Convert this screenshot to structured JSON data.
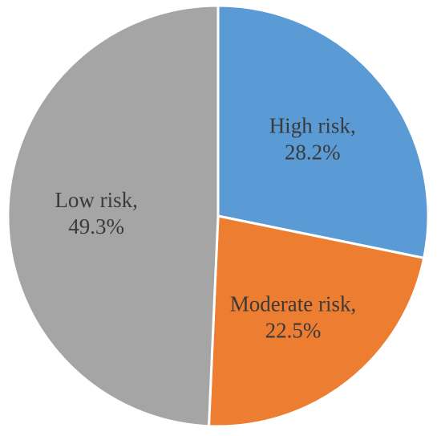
{
  "chart_data": {
    "type": "pie",
    "title": "",
    "start_angle_deg": 0,
    "direction": "clockwise",
    "slices": [
      {
        "category": "High risk",
        "label_line1": "High risk,",
        "value": 28.2,
        "value_label": "28.2%",
        "color": "#5b9bd5"
      },
      {
        "category": "Moderate risk",
        "label_line1": "Moderate risk,",
        "value": 22.5,
        "value_label": "22.5%",
        "color": "#ed7d31"
      },
      {
        "category": "Low risk",
        "label_line1": "Low risk,",
        "value": 49.3,
        "value_label": "49.3%",
        "color": "#a5a5a5"
      }
    ],
    "legend": "none",
    "data_labels": "inside"
  }
}
